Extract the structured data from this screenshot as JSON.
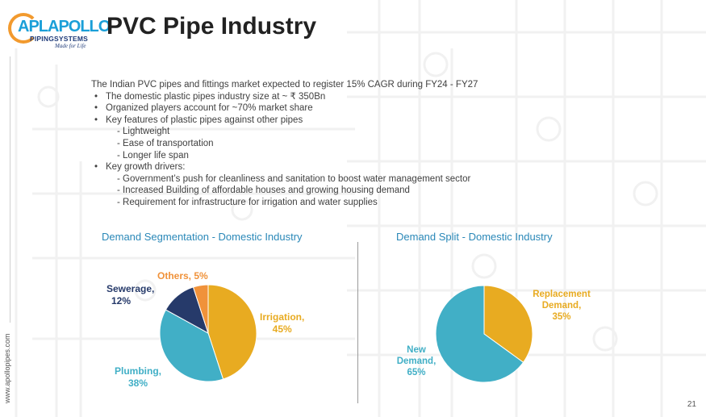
{
  "brand": {
    "logo_line1": "APLAPOLLO",
    "logo_line2": "PIPINGSYSTEMS",
    "tagline": "Made for Life",
    "website": "www.apollopipes.com"
  },
  "page": {
    "title": "PVC Pipe Industry",
    "number": "21"
  },
  "content": {
    "intro": "The Indian PVC pipes and fittings market expected to register 15% CAGR during FY24 - FY27",
    "bullets": [
      "The domestic plastic pipes industry size at ~ ₹ 350Bn",
      "Organized players account for ~70% market share",
      "Key features of plastic pipes against other pipes"
    ],
    "features": [
      "- Lightweight",
      "- Ease of transportation",
      "- Longer life span"
    ],
    "growth_heading": "Key growth drivers:",
    "drivers": [
      "- Government’s push for cleanliness and  sanitation to boost water management sector",
      "- Increased Building of affordable houses and growing housing demand",
      "- Requirement for infrastructure for irrigation and water supplies"
    ]
  },
  "colors": {
    "irrigation": "#e8ab21",
    "plumbing": "#41afc6",
    "sewerage": "#263a6a",
    "others": "#f0923a",
    "title_blue": "#2a88b8"
  },
  "chart_data": [
    {
      "type": "pie",
      "title": "Demand Segmentation - Domestic Industry",
      "slices": [
        {
          "name": "Irrigation,",
          "value": 45,
          "label": "45%",
          "color": "#e8ab21"
        },
        {
          "name": "Plumbing,",
          "value": 38,
          "label": "38%",
          "color": "#41afc6"
        },
        {
          "name": "Sewerage,",
          "value": 12,
          "label": "12%",
          "color": "#263a6a"
        },
        {
          "name": "Others,",
          "value": 5,
          "label": "5%",
          "color": "#f0923a"
        }
      ]
    },
    {
      "type": "pie",
      "title": "Demand Split - Domestic Industry",
      "slices": [
        {
          "name": "Replacement Demand,",
          "value": 35,
          "label": "35%",
          "color": "#e8ab21"
        },
        {
          "name": "New Demand,",
          "value": 65,
          "label": "65%",
          "color": "#41afc6"
        }
      ]
    }
  ]
}
